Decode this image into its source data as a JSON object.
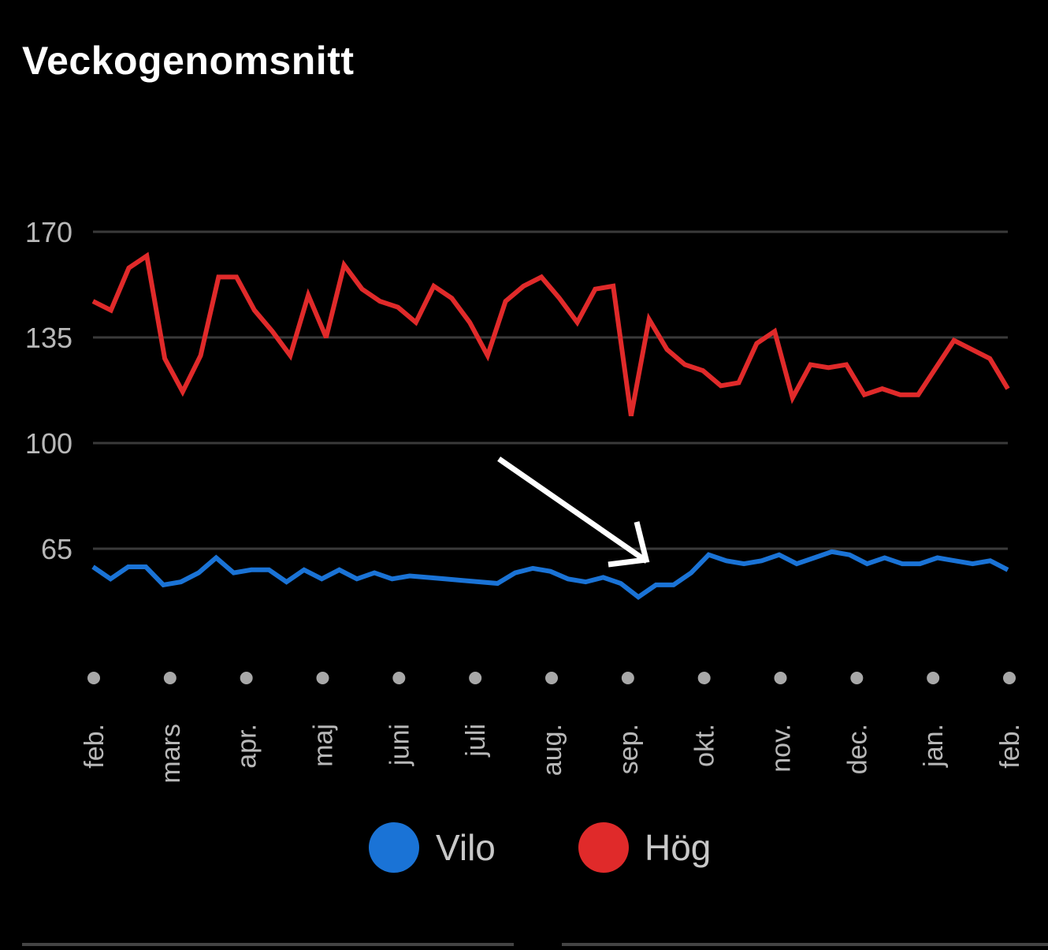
{
  "title": "Veckogenomsnitt",
  "chart_data": {
    "type": "line",
    "title": "Veckogenomsnitt",
    "ylim": [
      30,
      170
    ],
    "yticks": [
      170,
      135,
      100,
      65
    ],
    "months": [
      "feb.",
      "mars",
      "apr.",
      "maj",
      "juni",
      "juli",
      "aug.",
      "sep.",
      "okt.",
      "nov.",
      "dec.",
      "jan.",
      "feb."
    ],
    "series": [
      {
        "name": "Vilo",
        "color": "#1a73d6",
        "values": [
          59,
          55,
          59,
          59,
          53,
          54,
          57,
          62,
          57,
          58,
          58,
          54,
          58,
          55,
          58,
          55,
          57,
          55,
          56,
          55.5,
          55,
          54.5,
          54,
          53.5,
          57,
          58.5,
          57.5,
          55,
          54,
          55.5,
          53.5,
          49,
          53,
          53,
          57,
          63,
          61,
          60,
          61,
          63,
          60,
          62,
          64,
          63,
          60,
          62,
          60,
          60,
          62,
          61,
          60,
          61,
          58
        ],
        "labels": {
          "legend": "Vilo"
        }
      },
      {
        "name": "Hög",
        "color": "#e02a2a",
        "values": [
          147,
          144,
          158,
          162,
          128,
          117,
          129,
          155,
          155,
          144,
          137,
          129,
          149,
          135,
          159,
          151,
          147,
          145,
          140,
          152,
          148,
          140,
          129,
          147,
          152,
          155,
          148,
          140,
          151,
          152,
          109,
          141,
          131,
          126,
          124,
          119,
          120,
          133,
          137,
          115,
          126,
          125,
          126,
          116,
          118,
          116,
          116,
          125,
          134,
          131,
          128,
          118
        ],
        "labels": {
          "legend": "Hög"
        }
      }
    ],
    "legend": [
      "Vilo",
      "Hög"
    ],
    "legend_position": "bottom-center",
    "grid": true
  },
  "annotation": {
    "type": "arrow",
    "color": "#ffffff",
    "target_month": "sep."
  }
}
